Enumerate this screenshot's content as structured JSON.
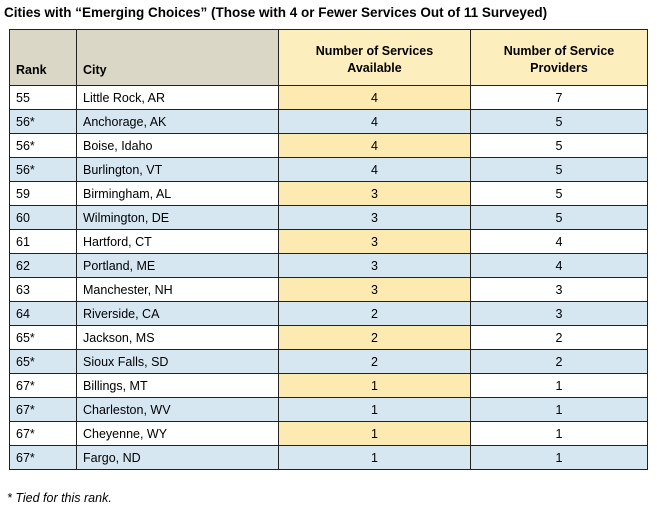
{
  "title": "Cities with “Emerging Choices” (Those with 4 or Fewer Services Out of 11 Surveyed)",
  "table": {
    "headers": {
      "rank": "Rank",
      "city": "City",
      "services_line1": "Number of Services",
      "services_line2": "Available",
      "providers_line1": "Number of Service",
      "providers_line2": "Providers"
    },
    "rows": [
      {
        "rank": "55",
        "city": "Little Rock, AR",
        "services": "4",
        "providers": "7"
      },
      {
        "rank": "56*",
        "city": "Anchorage, AK",
        "services": "4",
        "providers": "5"
      },
      {
        "rank": "56*",
        "city": "Boise, Idaho",
        "services": "4",
        "providers": "5"
      },
      {
        "rank": "56*",
        "city": "Burlington, VT",
        "services": "4",
        "providers": "5"
      },
      {
        "rank": "59",
        "city": "Birmingham, AL",
        "services": "3",
        "providers": "5"
      },
      {
        "rank": "60",
        "city": "Wilmington, DE",
        "services": "3",
        "providers": "5"
      },
      {
        "rank": "61",
        "city": "Hartford, CT",
        "services": "3",
        "providers": "4"
      },
      {
        "rank": "62",
        "city": "Portland, ME",
        "services": "3",
        "providers": "4"
      },
      {
        "rank": "63",
        "city": "Manchester, NH",
        "services": "3",
        "providers": "3"
      },
      {
        "rank": "64",
        "city": "Riverside, CA",
        "services": "2",
        "providers": "3"
      },
      {
        "rank": "65*",
        "city": "Jackson, MS",
        "services": "2",
        "providers": "2"
      },
      {
        "rank": "65*",
        "city": "Sioux Falls, SD",
        "services": "2",
        "providers": "2"
      },
      {
        "rank": "67*",
        "city": "Billings, MT",
        "services": "1",
        "providers": "1"
      },
      {
        "rank": "67*",
        "city": "Charleston, WV",
        "services": "1",
        "providers": "1"
      },
      {
        "rank": "67*",
        "city": "Cheyenne, WY",
        "services": "1",
        "providers": "1"
      },
      {
        "rank": "67*",
        "city": "Fargo, ND",
        "services": "1",
        "providers": "1"
      }
    ]
  },
  "footnote": "* Tied for this rank.",
  "colors": {
    "header_left_bg": "#dad7c7",
    "header_right_bg": "#fdefbd",
    "stripe_blue": "#d6e7f2",
    "highlight_yellow": "#fdeab1"
  }
}
